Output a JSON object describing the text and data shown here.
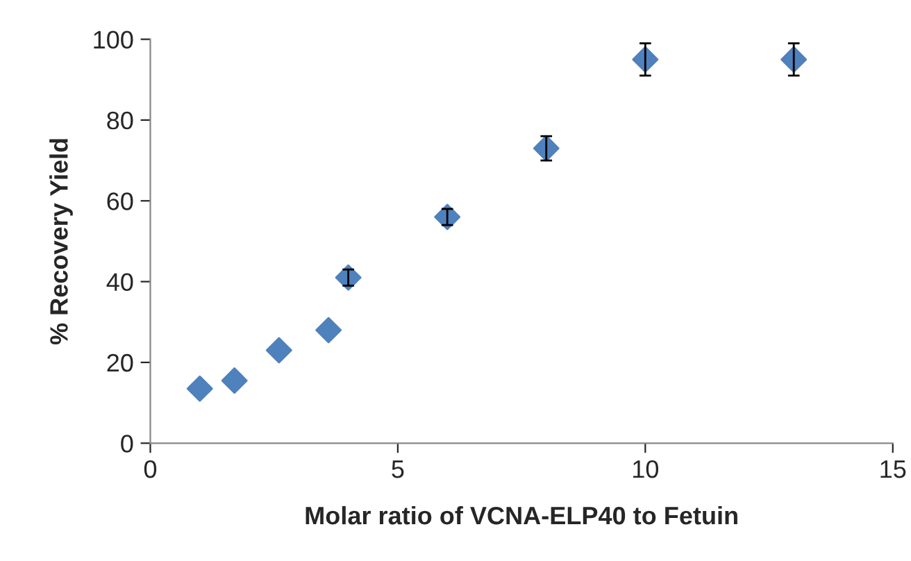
{
  "chart_data": {
    "type": "scatter",
    "xlabel": "Molar ratio of VCNA-ELP40 to Fetuin",
    "ylabel": "% Recovery Yield",
    "x": [
      1,
      1.7,
      2.6,
      3.6,
      4,
      6,
      8,
      10,
      13
    ],
    "series": [
      {
        "color": "#4f81bd",
        "values": [
          13.5,
          15.5,
          23,
          28,
          41,
          56,
          73,
          95,
          95
        ],
        "errors": [
          null,
          null,
          null,
          null,
          2,
          2,
          3,
          4,
          4
        ]
      }
    ],
    "xlim": [
      0,
      15
    ],
    "xticks": [
      0,
      5,
      10,
      15
    ],
    "ylim": [
      0,
      100
    ],
    "yticks": [
      0,
      20,
      40,
      60,
      80,
      100
    ],
    "grid": false,
    "legend": false,
    "marker": "diamond"
  }
}
